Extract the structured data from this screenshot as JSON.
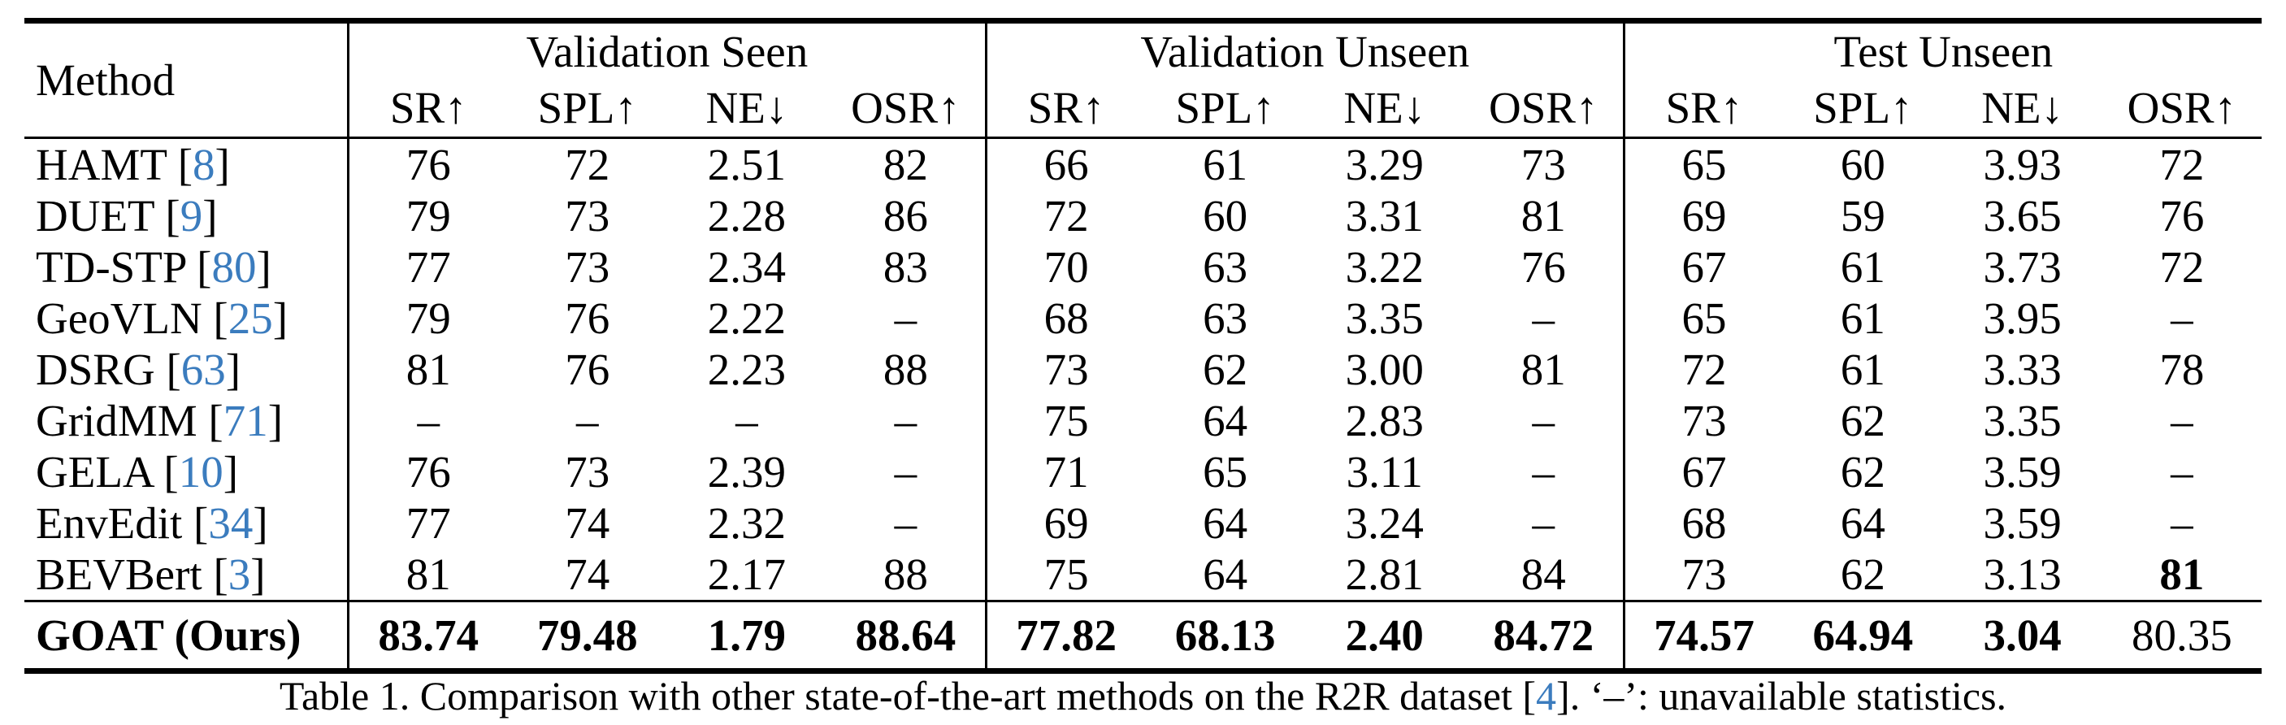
{
  "colors": {
    "citation_blue": "#3b7cbe",
    "text": "#000000",
    "background": "#ffffff"
  },
  "table": {
    "method_header": "Method",
    "citation_brackets": [
      "[",
      "]"
    ],
    "groups": [
      "Validation Seen",
      "Validation Unseen",
      "Test Unseen"
    ],
    "metrics": [
      "SR↑",
      "SPL↑",
      "NE↓",
      "OSR↑"
    ],
    "rows": [
      {
        "method": "HAMT",
        "cite": "8",
        "values": [
          "76",
          "72",
          "2.51",
          "82",
          "66",
          "61",
          "3.29",
          "73",
          "65",
          "60",
          "3.93",
          "72"
        ],
        "bold": []
      },
      {
        "method": "DUET",
        "cite": "9",
        "values": [
          "79",
          "73",
          "2.28",
          "86",
          "72",
          "60",
          "3.31",
          "81",
          "69",
          "59",
          "3.65",
          "76"
        ],
        "bold": []
      },
      {
        "method": "TD-STP",
        "cite": "80",
        "values": [
          "77",
          "73",
          "2.34",
          "83",
          "70",
          "63",
          "3.22",
          "76",
          "67",
          "61",
          "3.73",
          "72"
        ],
        "bold": []
      },
      {
        "method": "GeoVLN",
        "cite": "25",
        "values": [
          "79",
          "76",
          "2.22",
          "–",
          "68",
          "63",
          "3.35",
          "–",
          "65",
          "61",
          "3.95",
          "–"
        ],
        "bold": []
      },
      {
        "method": "DSRG",
        "cite": "63",
        "values": [
          "81",
          "76",
          "2.23",
          "88",
          "73",
          "62",
          "3.00",
          "81",
          "72",
          "61",
          "3.33",
          "78"
        ],
        "bold": []
      },
      {
        "method": "GridMM",
        "cite": "71",
        "values": [
          "–",
          "–",
          "–",
          "–",
          "75",
          "64",
          "2.83",
          "–",
          "73",
          "62",
          "3.35",
          "–"
        ],
        "bold": []
      },
      {
        "method": "GELA",
        "cite": "10",
        "values": [
          "76",
          "73",
          "2.39",
          "–",
          "71",
          "65",
          "3.11",
          "–",
          "67",
          "62",
          "3.59",
          "–"
        ],
        "bold": []
      },
      {
        "method": "EnvEdit",
        "cite": "34",
        "values": [
          "77",
          "74",
          "2.32",
          "–",
          "69",
          "64",
          "3.24",
          "–",
          "68",
          "64",
          "3.59",
          "–"
        ],
        "bold": []
      },
      {
        "method": "BEVBert",
        "cite": "3",
        "values": [
          "81",
          "74",
          "2.17",
          "88",
          "75",
          "64",
          "2.81",
          "84",
          "73",
          "62",
          "3.13",
          "81"
        ],
        "bold": [
          11
        ]
      }
    ],
    "final_row": {
      "method": "GOAT (Ours)",
      "cite": null,
      "values": [
        "83.74",
        "79.48",
        "1.79",
        "88.64",
        "77.82",
        "68.13",
        "2.40",
        "84.72",
        "74.57",
        "64.94",
        "3.04",
        "80.35"
      ],
      "bold": [
        0,
        1,
        2,
        3,
        4,
        5,
        6,
        7,
        8,
        9,
        10
      ]
    }
  },
  "caption": {
    "parts": [
      {
        "text": "Table 1. Comparison with other state-of-the-art methods on the R2R dataset [",
        "style": "normal"
      },
      {
        "text": "4",
        "style": "cite"
      },
      {
        "text": "]. ‘–’: unavailable statistics.",
        "style": "normal"
      }
    ]
  }
}
